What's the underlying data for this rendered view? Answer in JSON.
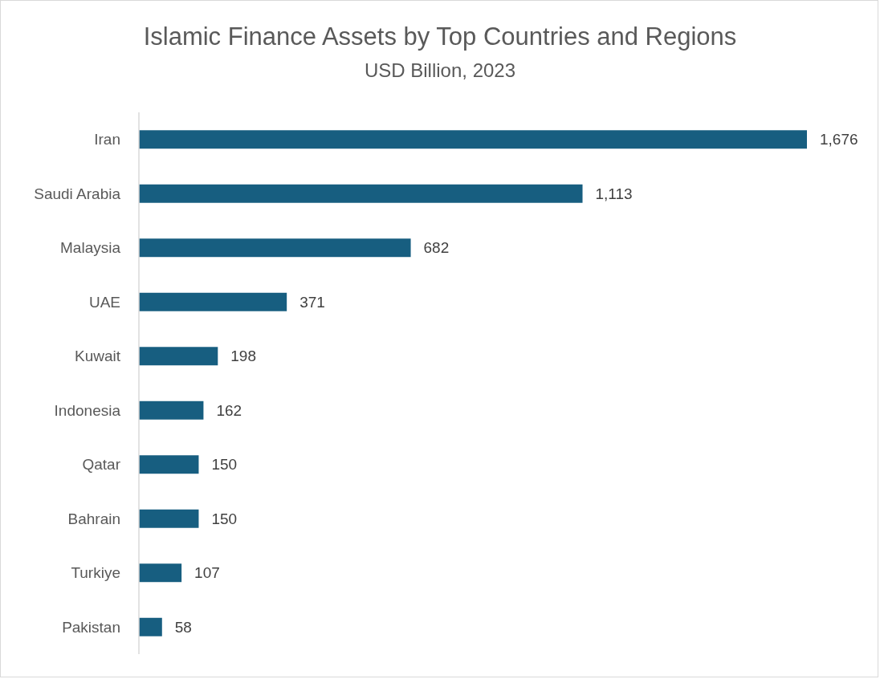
{
  "chart_data": {
    "type": "bar",
    "orientation": "horizontal",
    "title": "Islamic Finance Assets by Top Countries and Regions",
    "subtitle": "USD Billion, 2023",
    "categories": [
      "Iran",
      "Saudi Arabia",
      "Malaysia",
      "UAE",
      "Kuwait",
      "Indonesia",
      "Qatar",
      "Bahrain",
      "Turkiye",
      "Pakistan"
    ],
    "values": [
      1676,
      1113,
      682,
      371,
      198,
      162,
      150,
      150,
      107,
      58
    ],
    "value_labels": [
      "1,676",
      "1,113",
      "682",
      "371",
      "198",
      "162",
      "150",
      "150",
      "107",
      "58"
    ],
    "color": "#175e80",
    "tick_labels": "y"
  }
}
